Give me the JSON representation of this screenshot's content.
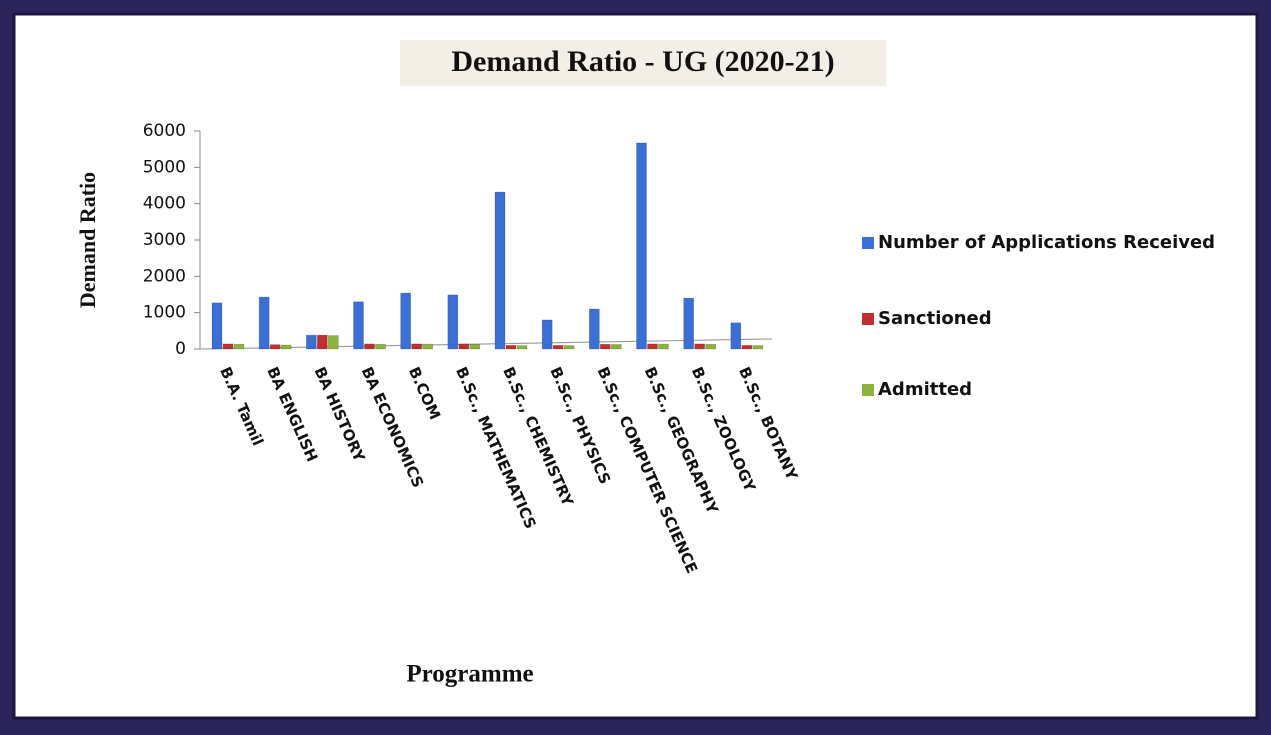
{
  "chart_data": {
    "type": "bar",
    "title": "Demand Ratio - UG (2020-21)",
    "x_label": "Programme",
    "y_label": "Demand Ratio",
    "categories": [
      "B.A. Tamil",
      "BA ENGLISH",
      "BA HISTORY",
      "BA ECONOMICS",
      "B.COM",
      "B.Sc., MATHEMATICS",
      "B.Sc., CHEMISTRY",
      "B.Sc., PHYSICS",
      "B.Sc., COMPUTER SCIENCE",
      "B.Sc., GEOGRAPHY",
      "B.Sc., ZOOLOGY",
      "B.Sc., BOTANY"
    ],
    "series": [
      {
        "name": "Number of Applications Received",
        "color": "#3b6fd6",
        "values": [
          1270,
          1430,
          380,
          1300,
          1540,
          1490,
          4320,
          800,
          1100,
          5670,
          1400,
          720
        ]
      },
      {
        "name": "Sanctioned",
        "color": "#c0302f",
        "values": [
          140,
          120,
          380,
          140,
          140,
          140,
          100,
          100,
          130,
          140,
          140,
          100
        ]
      },
      {
        "name": "Admitted",
        "color": "#8db33a",
        "values": [
          130,
          110,
          370,
          130,
          135,
          130,
          95,
          95,
          125,
          135,
          130,
          95
        ]
      }
    ],
    "ylim": [
      0,
      6000
    ],
    "yticks": [
      0,
      1000,
      2000,
      3000,
      4000,
      5000,
      6000
    ],
    "legend": "right"
  }
}
